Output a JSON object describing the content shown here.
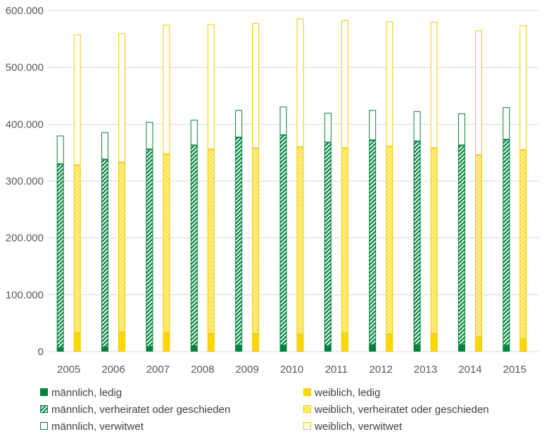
{
  "chart_data": {
    "type": "bar",
    "stacked": true,
    "grouped": true,
    "categories": [
      "2005",
      "2006",
      "2007",
      "2008",
      "2009",
      "2010",
      "2011",
      "2012",
      "2013",
      "2014",
      "2015"
    ],
    "ylim": [
      0,
      600000
    ],
    "y_ticks": [
      0,
      100000,
      200000,
      300000,
      400000,
      500000,
      600000
    ],
    "y_tick_labels": [
      "0",
      "100.000",
      "200.000",
      "300.000",
      "400.000",
      "500.000",
      "600.000"
    ],
    "grid": true,
    "legend_position": "bottom",
    "colors": {
      "male": "#00843D",
      "female": "#FFD700",
      "female_edge": "#F2C900",
      "grid": "#D9D9D9"
    },
    "groups": [
      {
        "id": "male",
        "series": [
          {
            "name": "männlich, ledig",
            "pattern": "solid",
            "values": [
              7000,
              8000,
              9000,
              10000,
              11000,
              11000,
              10000,
              12000,
              12000,
              12000,
              11000
            ]
          },
          {
            "name": "männlich, verheiratet oder geschieden",
            "pattern": "hatched",
            "values": [
              323000,
              330000,
              347000,
              353000,
              366000,
              370000,
              358000,
              360000,
              358000,
              351000,
              362000
            ]
          },
          {
            "name": "männlich, verwitwet",
            "pattern": "outline",
            "values": [
              50000,
              48000,
              48000,
              45000,
              48000,
              50000,
              52000,
              53000,
              53000,
              56000,
              57000
            ]
          }
        ]
      },
      {
        "id": "female",
        "series": [
          {
            "name": "weiblich, ledig",
            "pattern": "solid",
            "values": [
              33000,
              34000,
              33000,
              31000,
              31000,
              30000,
              32000,
              31000,
              31000,
              26000,
              22000
            ]
          },
          {
            "name": "weiblich, verheiratet oder geschieden",
            "pattern": "hatched",
            "values": [
              295000,
              299000,
              314000,
              325000,
              327000,
              330000,
              326000,
              330000,
              327000,
              320000,
              333000
            ]
          },
          {
            "name": "weiblich, verwitwet",
            "pattern": "outline",
            "values": [
              230000,
              227000,
              228000,
              220000,
              220000,
              226000,
              225000,
              220000,
              222000,
              219000,
              219000
            ]
          }
        ]
      }
    ],
    "legend": [
      {
        "label": "männlich, ledig",
        "group": "male",
        "pattern": "solid"
      },
      {
        "label": "weiblich, ledig",
        "group": "female",
        "pattern": "solid"
      },
      {
        "label": "männlich, verheiratet oder geschieden",
        "group": "male",
        "pattern": "hatched"
      },
      {
        "label": "weiblich, verheiratet oder geschieden",
        "group": "female",
        "pattern": "hatched"
      },
      {
        "label": "männlich, verwitwet",
        "group": "male",
        "pattern": "outline"
      },
      {
        "label": "weiblich, verwitwet",
        "group": "female",
        "pattern": "outline"
      }
    ]
  }
}
